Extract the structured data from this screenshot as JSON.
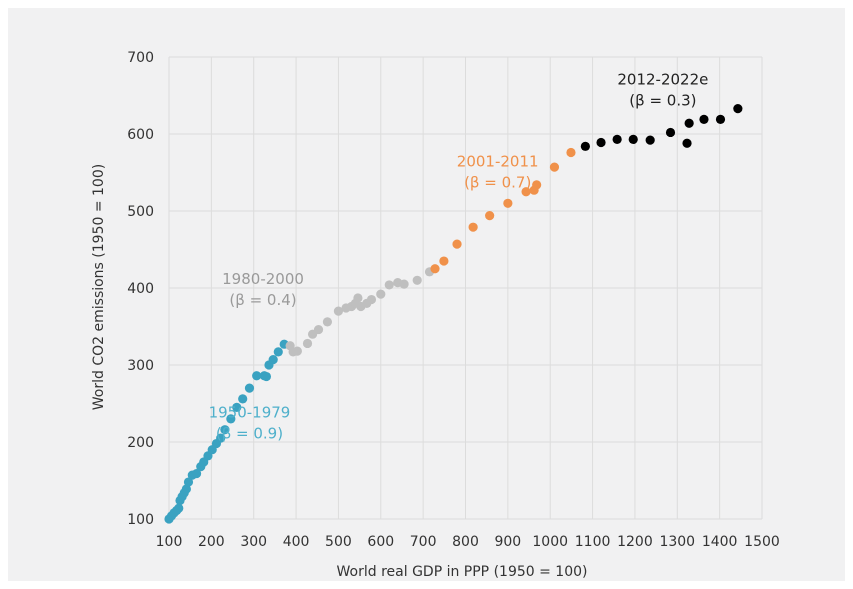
{
  "chart_data": {
    "type": "scatter",
    "xlabel": "World real GDP in PPP (1950 = 100)",
    "ylabel": "World CO2 emissions (1950 = 100)",
    "xlim": [
      100,
      1500
    ],
    "ylim": [
      100,
      700
    ],
    "xticks": [
      100,
      200,
      300,
      400,
      500,
      600,
      700,
      800,
      900,
      1000,
      1100,
      1200,
      1300,
      1400,
      1500
    ],
    "yticks": [
      100,
      200,
      300,
      400,
      500,
      600,
      700
    ],
    "grid": true,
    "series": [
      {
        "color": "#3aa2c1",
        "points": [
          [
            100,
            100
          ],
          [
            106,
            104
          ],
          [
            112,
            108
          ],
          [
            118,
            111
          ],
          [
            123,
            114
          ],
          [
            126,
            124
          ],
          [
            131,
            129
          ],
          [
            136,
            134
          ],
          [
            141,
            139
          ],
          [
            146,
            148
          ],
          [
            155,
            157
          ],
          [
            165,
            159
          ],
          [
            175,
            168
          ],
          [
            182,
            174
          ],
          [
            192,
            182
          ],
          [
            202,
            190
          ],
          [
            212,
            198
          ],
          [
            222,
            205
          ],
          [
            232,
            216
          ],
          [
            246,
            230
          ],
          [
            260,
            245
          ],
          [
            274,
            256
          ],
          [
            290,
            270
          ],
          [
            307,
            286
          ],
          [
            325,
            286
          ],
          [
            330,
            285
          ],
          [
            336,
            300
          ],
          [
            346,
            307
          ],
          [
            358,
            317
          ],
          [
            372,
            327
          ]
        ]
      },
      {
        "color": "#bfbfbf",
        "points": [
          [
            386,
            325
          ],
          [
            393,
            317
          ],
          [
            403,
            318
          ],
          [
            427,
            328
          ],
          [
            439,
            340
          ],
          [
            453,
            346
          ],
          [
            474,
            356
          ],
          [
            500,
            370
          ],
          [
            518,
            374
          ],
          [
            531,
            376
          ],
          [
            540,
            380
          ],
          [
            546,
            387
          ],
          [
            553,
            376
          ],
          [
            567,
            380
          ],
          [
            578,
            385
          ],
          [
            600,
            392
          ],
          [
            620,
            404
          ],
          [
            640,
            407
          ],
          [
            655,
            405
          ],
          [
            686,
            410
          ],
          [
            715,
            421
          ]
        ]
      },
      {
        "color": "#f0914a",
        "points": [
          [
            728,
            425
          ],
          [
            749,
            435
          ],
          [
            780,
            457
          ],
          [
            818,
            479
          ],
          [
            857,
            494
          ],
          [
            900,
            510
          ],
          [
            943,
            525
          ],
          [
            962,
            527
          ],
          [
            968,
            534
          ],
          [
            1010,
            557
          ],
          [
            1049,
            576
          ]
        ]
      },
      {
        "color": "#000000",
        "points": [
          [
            1083,
            584
          ],
          [
            1120,
            589
          ],
          [
            1158,
            593
          ],
          [
            1196,
            593
          ],
          [
            1236,
            592
          ],
          [
            1284,
            602
          ],
          [
            1323,
            588
          ],
          [
            1328,
            614
          ],
          [
            1363,
            619
          ],
          [
            1402,
            619
          ],
          [
            1443,
            633
          ]
        ]
      }
    ],
    "annotations": [
      {
        "line1": "1950-1979",
        "line2": "(β = 0.9)",
        "color": "#4fb0cb",
        "x": 290,
        "y": 232
      },
      {
        "line1": "1980-2000",
        "line2": "(β = 0.4)",
        "color": "#9a9a9a",
        "x": 322,
        "y": 405
      },
      {
        "line1": "2001-2011",
        "line2": "(β = 0.7)",
        "color": "#f0914a",
        "x": 876,
        "y": 558
      },
      {
        "line1": "2012-2022e",
        "line2": "(β = 0.3)",
        "color": "#222222",
        "x": 1266,
        "y": 664
      }
    ]
  }
}
